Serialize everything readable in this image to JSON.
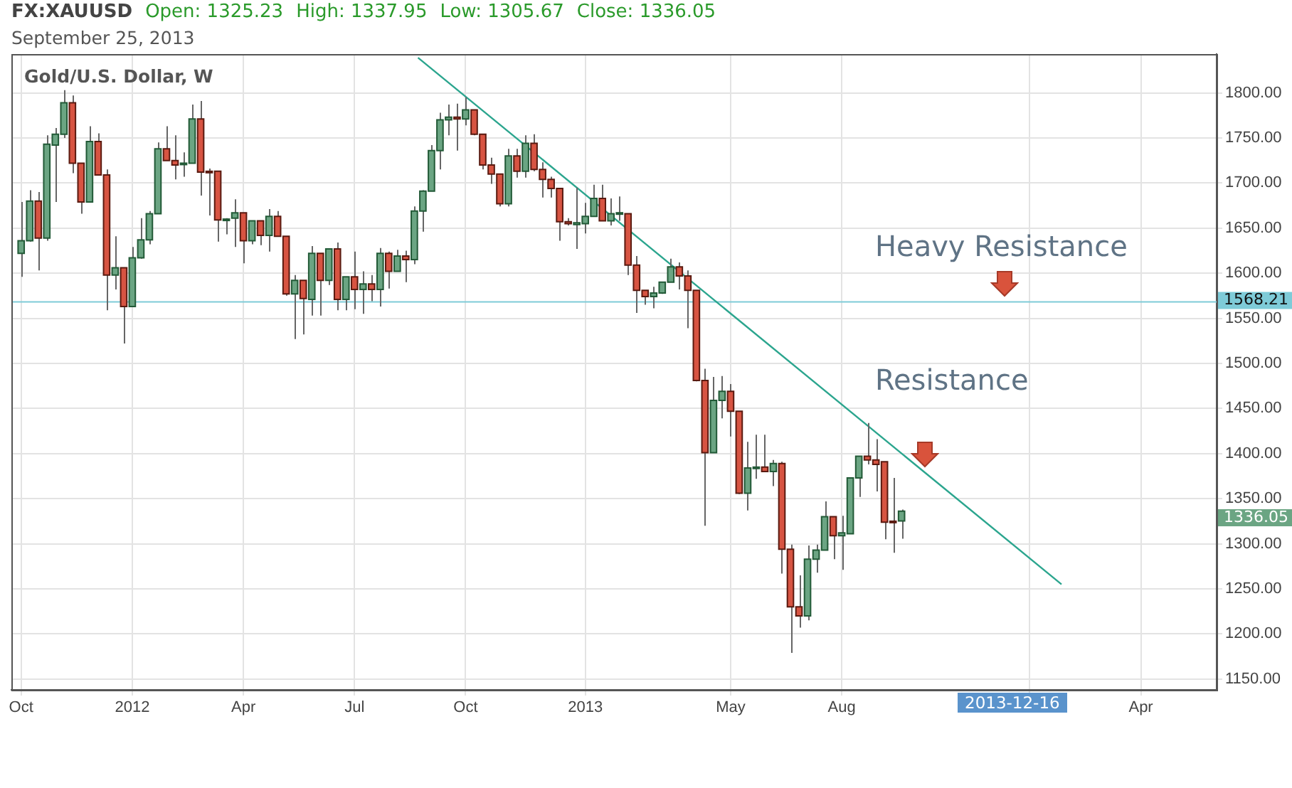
{
  "chart_data": {
    "type": "candlestick",
    "title": "FX:XAUUSD",
    "subtitle": "September 25, 2013",
    "annotations": [
      "Open: 1325.23",
      "High: 1337.95",
      "Low: 1305.67",
      "Close: 1336.05",
      "Gold/U.S. Dollar, W",
      "Heavy Resistance",
      "Resistance",
      "1336.05",
      "2013-12-16"
    ],
    "x": [
      "2011-10-03",
      "2011-10-10",
      "2011-10-17",
      "2011-10-24",
      "2011-10-31",
      "2011-11-07",
      "2011-11-14",
      "2011-11-21",
      "2011-11-28",
      "2011-12-05",
      "2011-12-12",
      "2011-12-19",
      "2011-12-26",
      "2012-01-02",
      "2012-01-09",
      "2012-01-16",
      "2012-01-23",
      "2012-01-30",
      "2012-02-06",
      "2012-02-13",
      "2012-02-20",
      "2012-02-27",
      "2012-03-05",
      "2012-03-12",
      "2012-03-19",
      "2012-03-26",
      "2012-04-02",
      "2012-04-09",
      "2012-04-16",
      "2012-04-23",
      "2012-04-30",
      "2012-05-07",
      "2012-05-14",
      "2012-05-21",
      "2012-05-28",
      "2012-06-04",
      "2012-06-11",
      "2012-06-18",
      "2012-06-25",
      "2012-07-02",
      "2012-07-09",
      "2012-07-16",
      "2012-07-23",
      "2012-07-30",
      "2012-08-06",
      "2012-08-13",
      "2012-08-20",
      "2012-08-27",
      "2012-09-03",
      "2012-09-10",
      "2012-09-17",
      "2012-09-24",
      "2012-10-01",
      "2012-10-08",
      "2012-10-15",
      "2012-10-22",
      "2012-10-29",
      "2012-11-05",
      "2012-11-12",
      "2012-11-19",
      "2012-11-26",
      "2012-12-03",
      "2012-12-10",
      "2012-12-17",
      "2012-12-24",
      "2012-12-31",
      "2013-01-07",
      "2013-01-14",
      "2013-01-21",
      "2013-01-28",
      "2013-02-04",
      "2013-02-11",
      "2013-02-18",
      "2013-02-25",
      "2013-03-04",
      "2013-03-11",
      "2013-03-18",
      "2013-03-25",
      "2013-04-01",
      "2013-04-08",
      "2013-04-15",
      "2013-04-22",
      "2013-04-29",
      "2013-05-06",
      "2013-05-13",
      "2013-05-20",
      "2013-05-27",
      "2013-06-03",
      "2013-06-10",
      "2013-06-17",
      "2013-06-24",
      "2013-07-01",
      "2013-07-08",
      "2013-07-15",
      "2013-07-22",
      "2013-07-29",
      "2013-08-05",
      "2013-08-12",
      "2013-08-19",
      "2013-08-26",
      "2013-09-02",
      "2013-09-09",
      "2013-09-16",
      "2013-09-23"
    ],
    "ohlc": [
      [
        1622,
        1679,
        1596,
        1636
      ],
      [
        1636,
        1692,
        1635,
        1680
      ],
      [
        1680,
        1690,
        1603,
        1639
      ],
      [
        1639,
        1753,
        1636,
        1743
      ],
      [
        1742,
        1761,
        1679,
        1754
      ],
      [
        1754,
        1803,
        1750,
        1789
      ],
      [
        1789,
        1797,
        1711,
        1722
      ],
      [
        1722,
        1722,
        1666,
        1679
      ],
      [
        1679,
        1763,
        1679,
        1746
      ],
      [
        1746,
        1755,
        1709,
        1709
      ],
      [
        1709,
        1715,
        1559,
        1598
      ],
      [
        1598,
        1641,
        1582,
        1606
      ],
      [
        1606,
        1606,
        1522,
        1563
      ],
      [
        1563,
        1629,
        1563,
        1617
      ],
      [
        1617,
        1661,
        1616,
        1637
      ],
      [
        1637,
        1669,
        1632,
        1666
      ],
      [
        1666,
        1745,
        1666,
        1738
      ],
      [
        1738,
        1763,
        1725,
        1725
      ],
      [
        1725,
        1753,
        1704,
        1720
      ],
      [
        1721,
        1734,
        1707,
        1722
      ],
      [
        1722,
        1787,
        1722,
        1771
      ],
      [
        1771,
        1791,
        1686,
        1712
      ],
      [
        1713,
        1716,
        1664,
        1712
      ],
      [
        1713,
        1713,
        1635,
        1659
      ],
      [
        1659,
        1661,
        1643,
        1660
      ],
      [
        1661,
        1682,
        1629,
        1667
      ],
      [
        1667,
        1667,
        1611,
        1636
      ],
      [
        1636,
        1658,
        1632,
        1658
      ],
      [
        1658,
        1658,
        1631,
        1642
      ],
      [
        1642,
        1671,
        1624,
        1663
      ],
      [
        1663,
        1669,
        1641,
        1641
      ],
      [
        1641,
        1641,
        1575,
        1577
      ],
      [
        1577,
        1598,
        1527,
        1592
      ],
      [
        1592,
        1592,
        1532,
        1572
      ],
      [
        1571,
        1630,
        1553,
        1622
      ],
      [
        1622,
        1622,
        1553,
        1592
      ],
      [
        1592,
        1627,
        1587,
        1627
      ],
      [
        1627,
        1634,
        1559,
        1571
      ],
      [
        1571,
        1596,
        1559,
        1596
      ],
      [
        1596,
        1624,
        1560,
        1582
      ],
      [
        1582,
        1602,
        1555,
        1588
      ],
      [
        1588,
        1598,
        1569,
        1582
      ],
      [
        1582,
        1628,
        1563,
        1622
      ],
      [
        1622,
        1624,
        1583,
        1602
      ],
      [
        1602,
        1626,
        1602,
        1619
      ],
      [
        1619,
        1625,
        1590,
        1615
      ],
      [
        1615,
        1674,
        1610,
        1669
      ],
      [
        1669,
        1692,
        1646,
        1691
      ],
      [
        1691,
        1742,
        1691,
        1736
      ],
      [
        1736,
        1778,
        1715,
        1770
      ],
      [
        1770,
        1787,
        1753,
        1773
      ],
      [
        1773,
        1788,
        1736,
        1771
      ],
      [
        1771,
        1795,
        1764,
        1781
      ],
      [
        1781,
        1781,
        1753,
        1754
      ],
      [
        1754,
        1754,
        1715,
        1720
      ],
      [
        1720,
        1728,
        1699,
        1710
      ],
      [
        1710,
        1710,
        1674,
        1677
      ],
      [
        1677,
        1738,
        1674,
        1730
      ],
      [
        1730,
        1738,
        1706,
        1713
      ],
      [
        1713,
        1753,
        1706,
        1744
      ],
      [
        1744,
        1754,
        1713,
        1715
      ],
      [
        1715,
        1723,
        1684,
        1704
      ],
      [
        1704,
        1707,
        1684,
        1694
      ],
      [
        1694,
        1694,
        1636,
        1657
      ],
      [
        1657,
        1661,
        1653,
        1655
      ],
      [
        1654,
        1695,
        1627,
        1656
      ],
      [
        1655,
        1678,
        1644,
        1663
      ],
      [
        1663,
        1698,
        1663,
        1683
      ],
      [
        1683,
        1698,
        1658,
        1658
      ],
      [
        1658,
        1683,
        1653,
        1666
      ],
      [
        1666,
        1685,
        1658,
        1667
      ],
      [
        1666,
        1666,
        1598,
        1609
      ],
      [
        1609,
        1619,
        1556,
        1581
      ],
      [
        1581,
        1581,
        1565,
        1574
      ],
      [
        1574,
        1585,
        1561,
        1578
      ],
      [
        1578,
        1590,
        1577,
        1590
      ],
      [
        1590,
        1616,
        1590,
        1607
      ],
      [
        1607,
        1612,
        1582,
        1597
      ],
      [
        1597,
        1603,
        1539,
        1581
      ],
      [
        1581,
        1581,
        1480,
        1481
      ],
      [
        1481,
        1494,
        1320,
        1401
      ],
      [
        1401,
        1485,
        1401,
        1459
      ],
      [
        1459,
        1486,
        1439,
        1469
      ],
      [
        1469,
        1477,
        1419,
        1447
      ],
      [
        1447,
        1447,
        1355,
        1356
      ],
      [
        1356,
        1413,
        1337,
        1384
      ],
      [
        1384,
        1421,
        1372,
        1385
      ],
      [
        1385,
        1421,
        1380,
        1380
      ],
      [
        1380,
        1393,
        1364,
        1389
      ],
      [
        1389,
        1391,
        1267,
        1294
      ],
      [
        1294,
        1299,
        1179,
        1230
      ],
      [
        1230,
        1265,
        1207,
        1220
      ],
      [
        1220,
        1298,
        1215,
        1283
      ],
      [
        1283,
        1299,
        1268,
        1293
      ],
      [
        1293,
        1347,
        1293,
        1330
      ],
      [
        1330,
        1330,
        1283,
        1309
      ],
      [
        1309,
        1331,
        1271,
        1312
      ],
      [
        1311,
        1373,
        1311,
        1373
      ],
      [
        1373,
        1397,
        1352,
        1397
      ],
      [
        1397,
        1434,
        1388,
        1393
      ],
      [
        1393,
        1416,
        1358,
        1388
      ],
      [
        1391,
        1391,
        1305,
        1324
      ],
      [
        1325,
        1373,
        1290,
        1324
      ],
      [
        1325.23,
        1337.95,
        1305.67,
        1336.05
      ]
    ],
    "series": [
      {
        "type": "line",
        "color": "#2ba58e",
        "x": [
          "2012-08-23",
          "2014-02-01"
        ],
        "values": [
          1839,
          1255
        ]
      }
    ],
    "ref_lines": [
      {
        "axis": "y",
        "value": 1568.21,
        "label": "1568.21",
        "color": "#7ecbd8"
      }
    ],
    "xlim": [
      "2011-09-25",
      "2014-06-08"
    ],
    "xticks": [
      {
        "value": "2011-10-03",
        "label": "Oct"
      },
      {
        "value": "2012-01-02",
        "label": "2012"
      },
      {
        "value": "2012-04-02",
        "label": "Apr"
      },
      {
        "value": "2012-07-02",
        "label": "Jul"
      },
      {
        "value": "2012-10-01",
        "label": "Oct"
      },
      {
        "value": "2013-01-07",
        "label": "2013"
      },
      {
        "value": "2013-05-06",
        "label": "May"
      },
      {
        "value": "2013-08-05",
        "label": "Aug"
      },
      {
        "value": "2014-01-06",
        "label": null
      },
      {
        "value": "2014-04-07",
        "label": "Apr"
      }
    ],
    "ylim": [
      1138,
      1843
    ],
    "yticks": [
      {
        "value": 1150,
        "label": "1150.00"
      },
      {
        "value": 1200,
        "label": "1200.00"
      },
      {
        "value": 1250,
        "label": "1250.00"
      },
      {
        "value": 1300,
        "label": "1300.00"
      },
      {
        "value": 1350,
        "label": "1350.00"
      },
      {
        "value": 1400,
        "label": "1400.00"
      },
      {
        "value": 1450,
        "label": "1450.00"
      },
      {
        "value": 1500,
        "label": "1500.00"
      },
      {
        "value": 1550,
        "label": "1550.00"
      },
      {
        "value": 1600,
        "label": "1600.00"
      },
      {
        "value": 1650,
        "label": "1650.00"
      },
      {
        "value": 1700,
        "label": "1700.00"
      },
      {
        "value": 1750,
        "label": "1750.00"
      },
      {
        "value": 1800,
        "label": "1800.00"
      }
    ],
    "grid": true,
    "legend": false
  }
}
